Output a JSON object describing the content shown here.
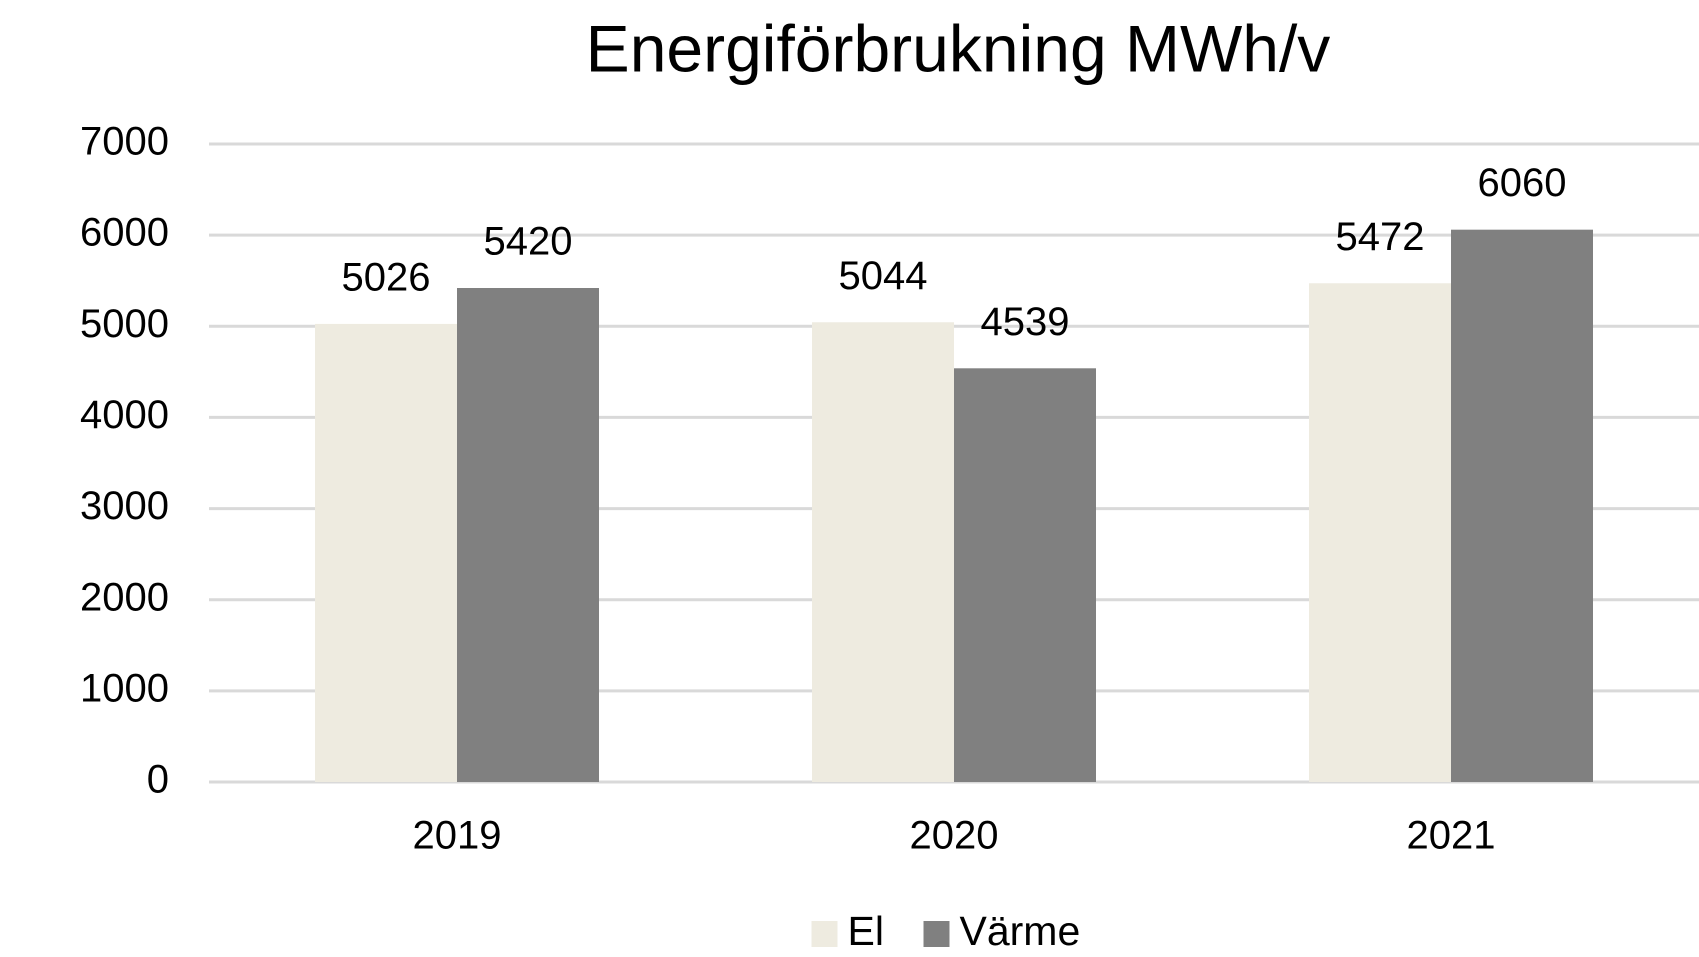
{
  "chart_data": {
    "type": "bar",
    "title": "Energiförbrukning MWh/v",
    "categories": [
      "2019",
      "2020",
      "2021"
    ],
    "series": [
      {
        "name": "El",
        "color": "#eeebe0",
        "values": [
          5026,
          5044,
          5472
        ]
      },
      {
        "name": "Värme",
        "color": "#808080",
        "values": [
          5420,
          4539,
          6060
        ]
      }
    ],
    "ylim": [
      0,
      7000
    ],
    "yticks": [
      0,
      1000,
      2000,
      3000,
      4000,
      5000,
      6000,
      7000
    ],
    "grid": true,
    "legend": "bottom"
  }
}
